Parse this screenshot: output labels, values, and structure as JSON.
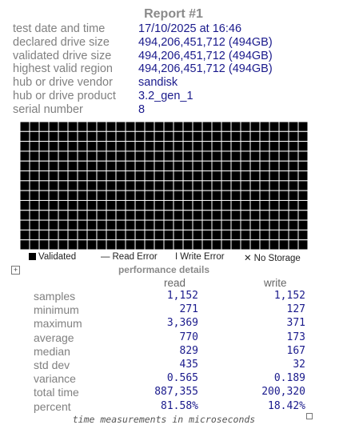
{
  "report": {
    "title": "Report #1"
  },
  "info": [
    {
      "label": "test date and time",
      "value": "17/10/2025  at  16:46"
    },
    {
      "label": "declared drive size",
      "value": "494,206,451,712 (494GB)"
    },
    {
      "label": "validated drive size",
      "value": "494,206,451,712 (494GB)"
    },
    {
      "label": "highest valid region",
      "value": "494,206,451,712 (494GB)"
    },
    {
      "label": "hub or drive vendor",
      "value": "sandisk"
    },
    {
      "label": "hub or drive product",
      "value": "3.2_gen_1"
    },
    {
      "label": "serial number",
      "value": "8"
    }
  ],
  "grid": {
    "columns": 30,
    "rows": 13,
    "status": "validated",
    "cell_color": "#000000",
    "line_color": "#ffffff"
  },
  "legend": [
    {
      "icon": "validated-square-icon",
      "glyph": "",
      "label": "Validated"
    },
    {
      "icon": "read-error-dash-icon",
      "glyph": "—",
      "label": "Read Error"
    },
    {
      "icon": "write-error-bar-icon",
      "glyph": "I",
      "label": "Write Error"
    },
    {
      "icon": "no-storage-x-icon",
      "glyph": "✕",
      "label": "No Storage"
    }
  ],
  "performance": {
    "title": "performance details",
    "columns": {
      "read": "read",
      "write": "write"
    },
    "rows": [
      {
        "label": "samples",
        "read": "1,152",
        "write": "1,152"
      },
      {
        "label": "minimum",
        "read": "271",
        "write": "127"
      },
      {
        "label": "maximum",
        "read": "3,369",
        "write": "371"
      },
      {
        "label": "average",
        "read": "770",
        "write": "173"
      },
      {
        "label": "median",
        "read": "829",
        "write": "167"
      },
      {
        "label": "std dev",
        "read": "435",
        "write": "32"
      },
      {
        "label": "variance",
        "read": "0.565",
        "write": "0.189"
      },
      {
        "label": "total time",
        "read": "887,355",
        "write": "200,320"
      },
      {
        "label": "percent",
        "read": "81.58%",
        "write": "18.42%"
      }
    ],
    "footer": "time measurements in microseconds"
  },
  "icons": {
    "expand": "expand-icon",
    "corner": "resize-corner-icon"
  },
  "colors": {
    "label": "#808080",
    "value": "#1a1a8c",
    "title": "#8a8a8a"
  }
}
